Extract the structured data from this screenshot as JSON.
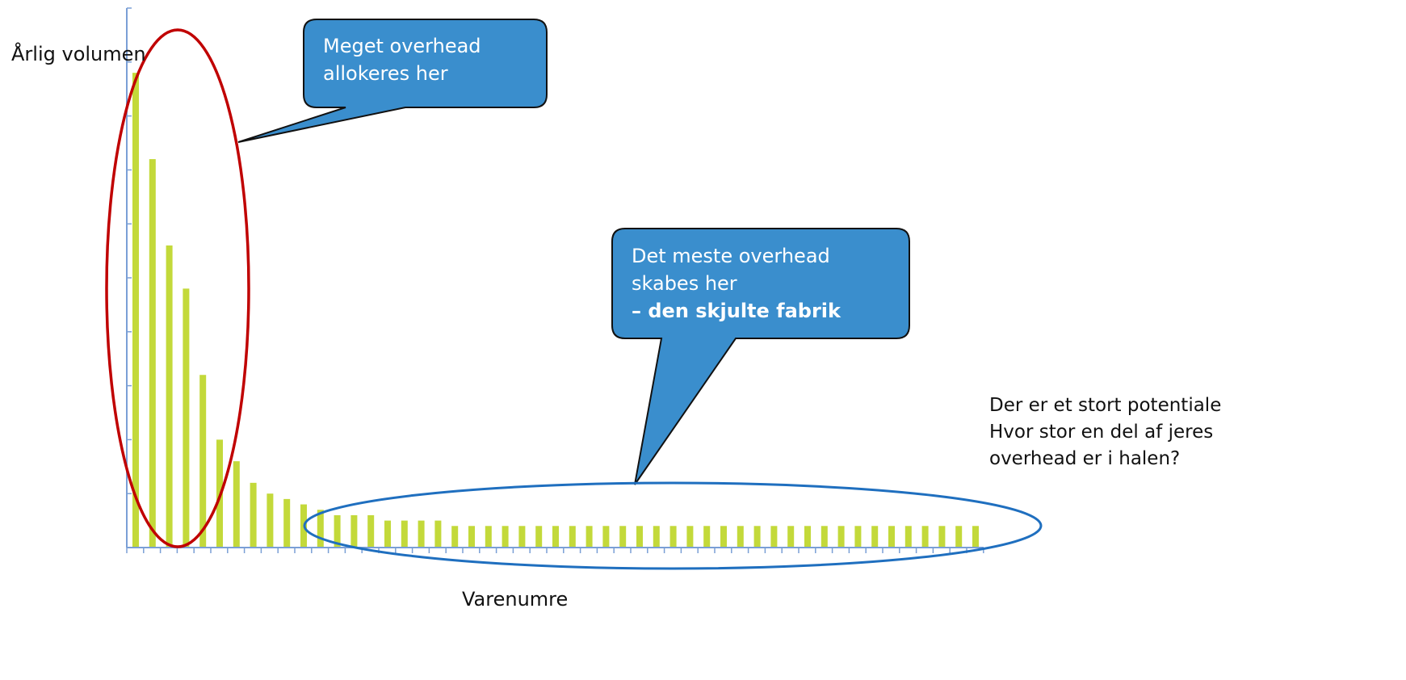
{
  "chart_data": {
    "type": "bar",
    "title": "",
    "ylabel": "Årlig volumen",
    "xlabel": "Varenumre",
    "ylim": [
      0,
      10
    ],
    "grid": false,
    "legend": "none",
    "values": [
      8.8,
      7.2,
      5.6,
      4.8,
      3.2,
      2.0,
      1.6,
      1.2,
      1.0,
      0.9,
      0.8,
      0.7,
      0.6,
      0.6,
      0.6,
      0.5,
      0.5,
      0.5,
      0.5,
      0.4,
      0.4,
      0.4,
      0.4,
      0.4,
      0.4,
      0.4,
      0.4,
      0.4,
      0.4,
      0.4,
      0.4,
      0.4,
      0.4,
      0.4,
      0.4,
      0.4,
      0.4,
      0.4,
      0.4,
      0.4,
      0.4,
      0.4,
      0.4,
      0.4,
      0.4,
      0.4,
      0.4,
      0.4,
      0.4,
      0.4,
      0.4
    ],
    "bar_color": "#c3d93a",
    "axis_color": "#7a9fd6",
    "annotations": [
      {
        "lines": [
          "Meget overhead",
          "allokeres her"
        ],
        "highlight": "head",
        "ellipse_color": "#c00000",
        "box_color": "#3a8ecd"
      },
      {
        "lines": [
          "Det meste overhead",
          "skabes her",
          "– den skjulte fabrik"
        ],
        "bold_line": 2,
        "highlight": "tail",
        "ellipse_color": "#1f6fbf",
        "box_color": "#3a8ecd"
      }
    ],
    "side_note": [
      "Der er et stort potentiale",
      "Hvor stor en del af jeres",
      "overhead er i halen?"
    ]
  }
}
